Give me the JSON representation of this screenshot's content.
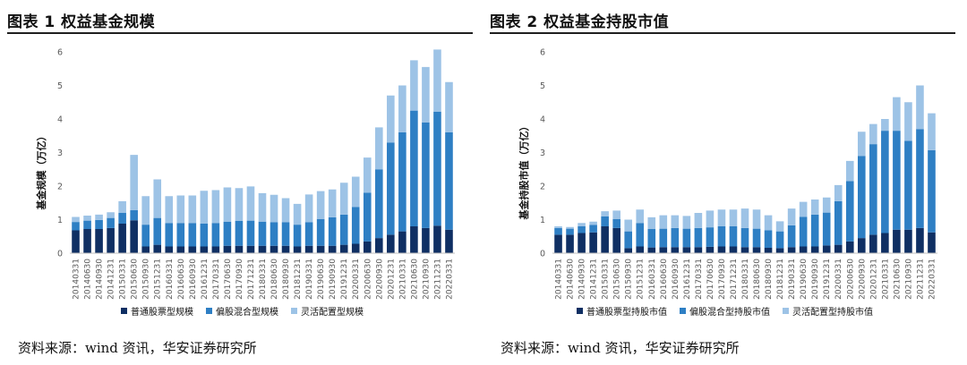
{
  "header_fragment": "",
  "colors": {
    "s1": "#0f2f63",
    "s2": "#2e7fc4",
    "s3": "#9dc3e6",
    "axis": "#bfbfbf",
    "tick": "#595959"
  },
  "left": {
    "title": "图表 1 权益基金规模",
    "source": "资料来源：wind 资讯，华安证券研究所",
    "chart_data": {
      "type": "bar",
      "stacked": true,
      "ylabel": "基金规模（万亿）",
      "ylim": [
        0,
        6
      ],
      "yticks": [
        "0",
        "1",
        "2",
        "3",
        "4",
        "5",
        "6"
      ],
      "categories": [
        "20140331",
        "20140630",
        "20140930",
        "20141231",
        "20150331",
        "20150630",
        "20150930",
        "20151231",
        "20160331",
        "20160630",
        "20160930",
        "20161231",
        "20170331",
        "20170630",
        "20170930",
        "20171231",
        "20180331",
        "20180630",
        "20180930",
        "20181231",
        "20190331",
        "20190630",
        "20190930",
        "20191231",
        "20200331",
        "20200630",
        "20200930",
        "20201231",
        "20210331",
        "20210630",
        "20210930",
        "20211231",
        "20220331"
      ],
      "series": [
        {
          "name": "普通股票型规模",
          "values": [
            0.68,
            0.72,
            0.72,
            0.75,
            0.88,
            0.98,
            0.2,
            0.25,
            0.2,
            0.2,
            0.2,
            0.2,
            0.2,
            0.22,
            0.22,
            0.22,
            0.22,
            0.22,
            0.22,
            0.2,
            0.22,
            0.22,
            0.22,
            0.25,
            0.28,
            0.35,
            0.45,
            0.55,
            0.65,
            0.8,
            0.75,
            0.82,
            0.7
          ]
        },
        {
          "name": "偏股混合型规模",
          "values": [
            0.25,
            0.25,
            0.27,
            0.3,
            0.32,
            0.3,
            0.65,
            0.8,
            0.7,
            0.7,
            0.7,
            0.68,
            0.7,
            0.72,
            0.74,
            0.75,
            0.72,
            0.7,
            0.7,
            0.65,
            0.7,
            0.8,
            0.85,
            0.9,
            1.1,
            1.45,
            2.05,
            2.75,
            2.95,
            3.45,
            3.15,
            3.4,
            2.9
          ]
        },
        {
          "name": "灵活配置型规模",
          "values": [
            0.15,
            0.15,
            0.16,
            0.17,
            0.35,
            1.65,
            0.85,
            1.15,
            0.8,
            0.82,
            0.82,
            0.98,
            0.98,
            1.02,
            0.98,
            1.02,
            0.85,
            0.82,
            0.72,
            0.62,
            0.83,
            0.83,
            0.83,
            0.95,
            0.9,
            1.05,
            1.25,
            1.4,
            1.4,
            1.5,
            1.65,
            1.85,
            1.5
          ]
        }
      ]
    }
  },
  "right": {
    "title": "图表 2 权益基金持股市值",
    "source": "资料来源：wind 资讯，华安证券研究所",
    "chart_data": {
      "type": "bar",
      "stacked": true,
      "ylabel": "基金持股市值（万亿）",
      "ylim": [
        0,
        6
      ],
      "yticks": [
        "0",
        "1",
        "2",
        "3",
        "4",
        "5",
        "6"
      ],
      "categories": [
        "20140331",
        "20140630",
        "20140930",
        "20141231",
        "20150331",
        "20150630",
        "20150930",
        "20151231",
        "20160331",
        "20160630",
        "20160930",
        "20161231",
        "20170331",
        "20170630",
        "20170930",
        "20171231",
        "20180331",
        "20180630",
        "20180930",
        "20181231",
        "20190331",
        "20190630",
        "20190930",
        "20191231",
        "20200331",
        "20200630",
        "20200930",
        "20201231",
        "20210331",
        "20210630",
        "20210930",
        "20211231",
        "20220331"
      ],
      "series": [
        {
          "name": "普通股票型持股市值",
          "values": [
            0.55,
            0.55,
            0.6,
            0.62,
            0.8,
            0.75,
            0.15,
            0.2,
            0.17,
            0.18,
            0.18,
            0.18,
            0.18,
            0.19,
            0.2,
            0.2,
            0.18,
            0.18,
            0.16,
            0.15,
            0.18,
            0.2,
            0.2,
            0.23,
            0.25,
            0.35,
            0.45,
            0.55,
            0.6,
            0.7,
            0.7,
            0.75,
            0.62
          ]
        },
        {
          "name": "偏股混合型持股市值",
          "values": [
            0.2,
            0.18,
            0.2,
            0.22,
            0.3,
            0.27,
            0.5,
            0.7,
            0.55,
            0.55,
            0.57,
            0.55,
            0.57,
            0.58,
            0.6,
            0.6,
            0.57,
            0.55,
            0.52,
            0.5,
            0.65,
            0.88,
            0.95,
            0.98,
            1.3,
            1.8,
            2.45,
            2.7,
            3.05,
            2.95,
            2.65,
            2.95,
            2.45
          ]
        },
        {
          "name": "灵活配置型持股市值",
          "values": [
            0.05,
            0.05,
            0.1,
            0.1,
            0.15,
            0.25,
            0.35,
            0.4,
            0.35,
            0.4,
            0.38,
            0.38,
            0.45,
            0.5,
            0.5,
            0.5,
            0.58,
            0.57,
            0.45,
            0.3,
            0.5,
            0.45,
            0.45,
            0.45,
            0.48,
            0.6,
            0.72,
            0.6,
            0.35,
            1.0,
            1.15,
            1.3,
            1.1
          ]
        }
      ]
    }
  }
}
